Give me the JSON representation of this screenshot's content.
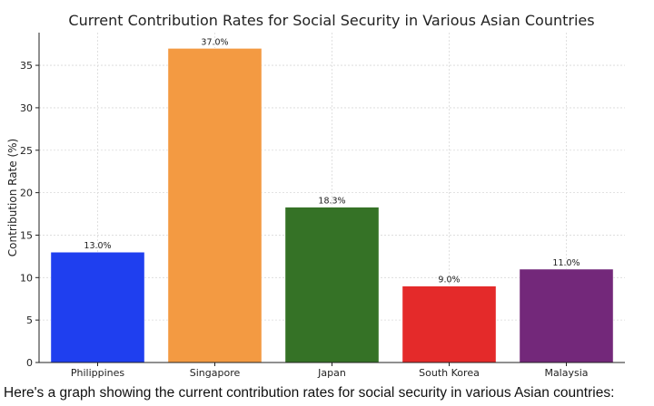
{
  "caption": "Here's a graph showing the current contribution rates for social security in various Asian countries:",
  "chart_data": {
    "type": "bar",
    "title": "Current Contribution Rates for Social Security in Various Asian Countries",
    "xlabel": "",
    "ylabel": "Contribution Rate (%)",
    "categories": [
      "Philippines",
      "Singapore",
      "Japan",
      "South Korea",
      "Malaysia"
    ],
    "values": [
      13.0,
      37.0,
      18.3,
      9.0,
      11.0
    ],
    "value_labels": [
      "13.0%",
      "37.0%",
      "18.3%",
      "9.0%",
      "11.0%"
    ],
    "colors": [
      "#1f3fef",
      "#f39a42",
      "#357226",
      "#e42a2a",
      "#73287a"
    ],
    "ylim": [
      0,
      38.85
    ],
    "yticks": [
      0,
      5,
      10,
      15,
      20,
      25,
      30,
      35
    ],
    "grid": true,
    "legend": "none"
  }
}
